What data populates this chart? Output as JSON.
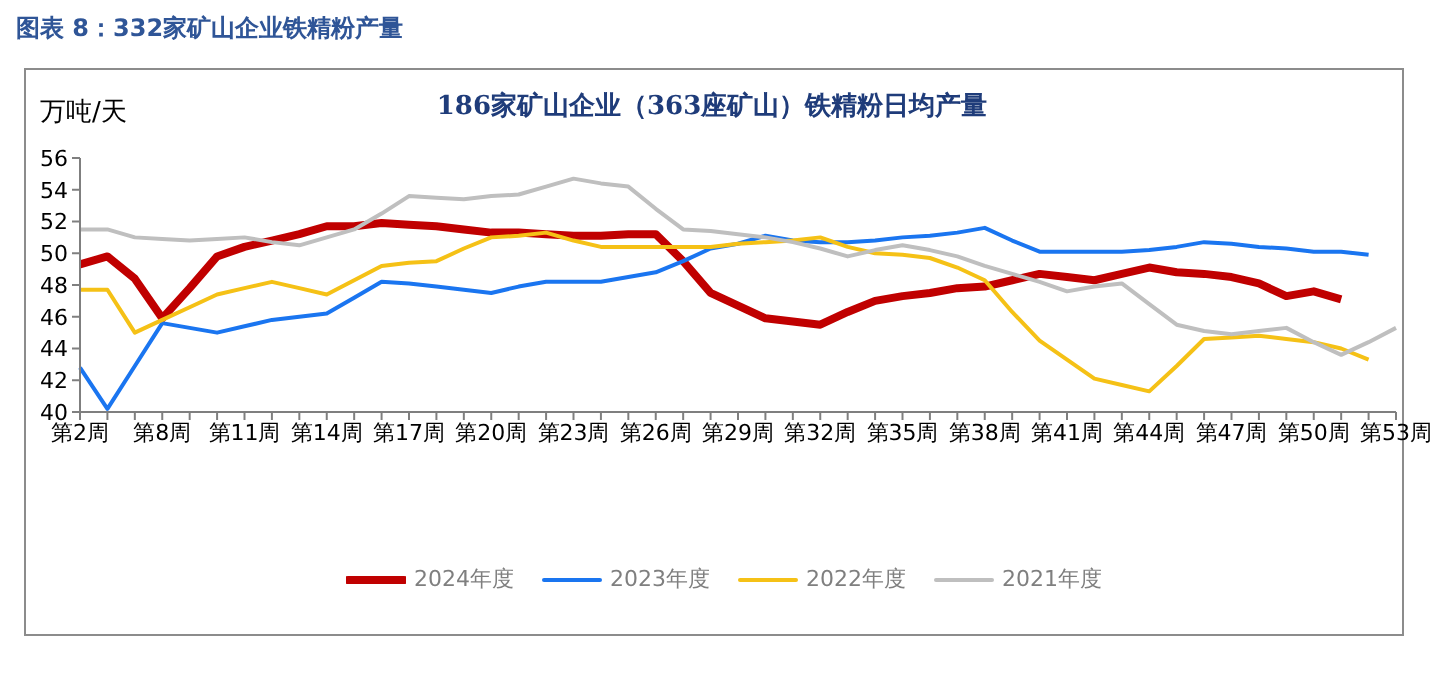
{
  "chart_data": {
    "type": "line",
    "title": "186家矿山企业（363座矿山）铁精粉日均产量",
    "annotations": [
      "图表 8：332家矿山企业铁精粉产量"
    ],
    "ylabel": "万吨/天",
    "categories": [
      "第2周",
      null,
      null,
      "第8周",
      null,
      null,
      "第11周",
      null,
      null,
      "第14周",
      null,
      null,
      "第17周",
      null,
      null,
      "第20周",
      null,
      null,
      "第23周",
      null,
      null,
      "第26周",
      null,
      null,
      "第29周",
      null,
      null,
      "第32周",
      null,
      null,
      "第35周",
      null,
      null,
      "第38周",
      null,
      null,
      "第41周",
      null,
      null,
      "第44周",
      null,
      null,
      "第47周",
      null,
      null,
      "第50周",
      null,
      null,
      "第53周"
    ],
    "series": [
      {
        "name": "2024年度",
        "color": "#c00000",
        "values": [
          49.3,
          49.8,
          48.4,
          45.9,
          47.8,
          49.8,
          50.4,
          50.8,
          51.2,
          51.7,
          51.7,
          51.9,
          51.8,
          51.7,
          51.5,
          51.3,
          51.3,
          51.2,
          51.1,
          51.1,
          51.2,
          51.2,
          49.5,
          47.5,
          46.7,
          45.9,
          45.7,
          45.5,
          46.3,
          47.0,
          47.3,
          47.5,
          47.8,
          47.9,
          48.3,
          48.7,
          48.5,
          48.3,
          48.7,
          49.1,
          48.8,
          48.7,
          48.5,
          48.1,
          47.3,
          47.6,
          47.1,
          null,
          null
        ]
      },
      {
        "name": "2023年度",
        "color": "#1a75f0",
        "values": [
          42.8,
          40.2,
          42.9,
          45.6,
          45.3,
          45.0,
          45.4,
          45.8,
          46.0,
          46.2,
          47.2,
          48.2,
          48.1,
          47.9,
          47.7,
          47.5,
          47.9,
          48.2,
          48.2,
          48.2,
          48.5,
          48.8,
          49.5,
          50.3,
          50.6,
          51.1,
          50.8,
          50.7,
          50.7,
          50.8,
          51.0,
          51.1,
          51.3,
          51.6,
          50.8,
          50.1,
          50.1,
          50.1,
          50.1,
          50.2,
          50.4,
          50.7,
          50.6,
          50.4,
          50.3,
          50.1,
          50.1,
          49.9,
          null
        ]
      },
      {
        "name": "2022年度",
        "color": "#f5c116",
        "values": [
          47.7,
          47.7,
          45.0,
          45.8,
          46.6,
          47.4,
          47.8,
          48.2,
          47.8,
          47.4,
          48.3,
          49.2,
          49.4,
          49.5,
          50.3,
          51.0,
          51.1,
          51.3,
          50.8,
          50.4,
          50.4,
          50.4,
          50.4,
          50.4,
          50.6,
          50.7,
          50.8,
          51.0,
          50.4,
          50.0,
          49.9,
          49.7,
          49.1,
          48.3,
          46.3,
          44.5,
          43.3,
          42.1,
          41.7,
          41.3,
          42.9,
          44.6,
          44.7,
          44.8,
          44.6,
          44.4,
          44.0,
          43.3,
          null
        ]
      },
      {
        "name": "2021年度",
        "color": "#bfbfbf",
        "values": [
          51.5,
          51.5,
          51.0,
          50.9,
          50.8,
          50.9,
          51.0,
          50.7,
          50.5,
          51.0,
          51.5,
          52.5,
          53.6,
          53.5,
          53.4,
          53.6,
          53.7,
          54.2,
          54.7,
          54.4,
          54.2,
          52.8,
          51.5,
          51.4,
          51.2,
          51.0,
          50.7,
          50.3,
          49.8,
          50.2,
          50.5,
          50.2,
          49.8,
          49.2,
          48.7,
          48.2,
          47.6,
          47.9,
          48.1,
          46.8,
          45.5,
          45.1,
          44.9,
          45.1,
          45.3,
          44.4,
          43.6,
          44.4,
          45.3
        ]
      }
    ],
    "ylim": [
      40,
      56
    ],
    "yticks": [
      40,
      42,
      44,
      46,
      48,
      50,
      52,
      54,
      56
    ],
    "grid": false,
    "legend": "bottom",
    "marker": "none",
    "line_style": "solid"
  }
}
